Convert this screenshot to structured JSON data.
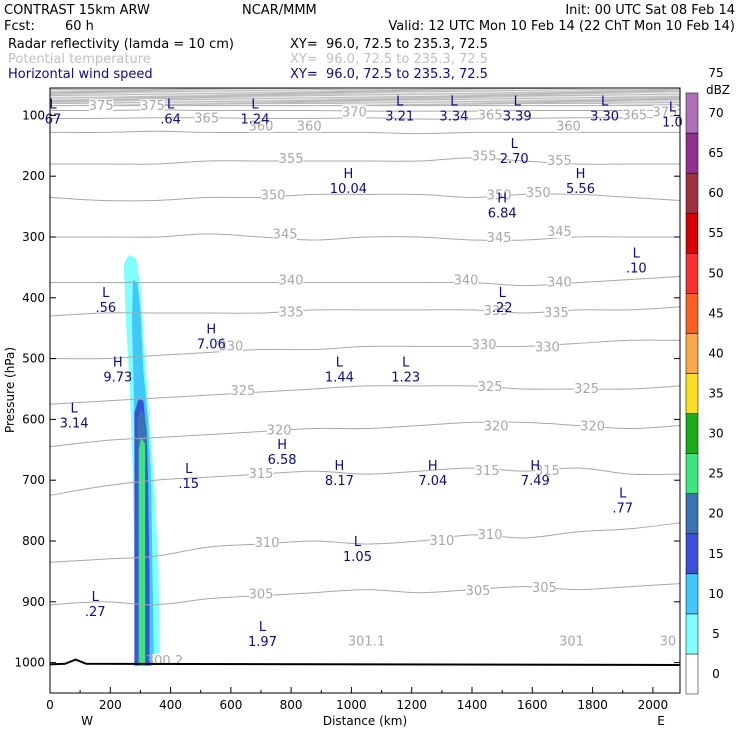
{
  "header": {
    "model": "CONTRAST 15km ARW",
    "center": "NCAR/MMM",
    "init": "Init: 00 UTC Sat 08 Feb 14",
    "fcst_label": "Fcst:",
    "fcst_value": "60 h",
    "valid": "Valid: 12 UTC Mon 10 Feb 14 (22 ChT Mon 10 Feb 14)",
    "fields": [
      {
        "name": "Radar reflectivity (lamda = 10 cm)",
        "xy": "XY=  96.0, 72.5 to 235.3, 72.5",
        "color": "#000000"
      },
      {
        "name": "Potential temperature",
        "xy": "XY=  96.0, 72.5 to 235.3, 72.5",
        "color": "#c0c0c0"
      },
      {
        "name": "Horizontal wind speed",
        "xy": "XY=  96.0, 72.5 to 235.3, 72.5",
        "color": "#0b0b8c"
      }
    ]
  },
  "chart_data": {
    "type": "cross-section",
    "xlabel": "Distance (km)",
    "ylabel": "Pressure (hPa)",
    "xlim": [
      0,
      2090
    ],
    "ylim": [
      1050,
      55
    ],
    "x_ticks": [
      0,
      200,
      400,
      600,
      800,
      1000,
      1200,
      1400,
      1600,
      1800,
      2000
    ],
    "y_ticks": [
      100,
      200,
      300,
      400,
      500,
      600,
      700,
      800,
      900,
      1000
    ],
    "x_end_labels": {
      "left": "W",
      "right": "E"
    },
    "colorbar": {
      "unit": "dBZ",
      "levels": [
        0,
        5,
        10,
        15,
        20,
        25,
        30,
        35,
        40,
        45,
        50,
        55,
        60,
        65,
        70,
        75
      ],
      "colors": [
        "#ffffff",
        "#7fffff",
        "#3fc8f8",
        "#3d50d8",
        "#3a74b0",
        "#3ce67a",
        "#1aad1a",
        "#f8e020",
        "#f8a848",
        "#f86020",
        "#f83030",
        "#d80000",
        "#a03040",
        "#903090",
        "#b070b8"
      ]
    },
    "theta_isentropes": [
      {
        "value": 305,
        "p": [
          905,
          900,
          905,
          895,
          890,
          885,
          880,
          885,
          880,
          875,
          880,
          875,
          870
        ]
      },
      {
        "value": 310,
        "p": [
          835,
          830,
          825,
          810,
          805,
          800,
          805,
          800,
          790,
          795,
          785,
          780,
          770
        ]
      },
      {
        "value": 315,
        "p": [
          725,
          710,
          700,
          695,
          690,
          685,
          690,
          685,
          680,
          685,
          680,
          690,
          690
        ]
      },
      {
        "value": 320,
        "p": [
          645,
          635,
          630,
          625,
          620,
          615,
          615,
          610,
          605,
          605,
          610,
          615,
          610
        ]
      },
      {
        "value": 325,
        "p": [
          575,
          570,
          565,
          560,
          555,
          550,
          545,
          545,
          545,
          550,
          550,
          550,
          545
        ]
      },
      {
        "value": 330,
        "p": [
          500,
          500,
          495,
          490,
          485,
          485,
          480,
          480,
          480,
          480,
          475,
          470,
          470
        ]
      },
      {
        "value": 335,
        "p": [
          430,
          425,
          425,
          425,
          425,
          420,
          420,
          420,
          420,
          425,
          420,
          420,
          415
        ]
      },
      {
        "value": 340,
        "p": [
          375,
          375,
          375,
          375,
          375,
          375,
          375,
          375,
          375,
          380,
          375,
          370,
          365
        ]
      },
      {
        "value": 345,
        "p": [
          300,
          300,
          300,
          295,
          300,
          305,
          300,
          300,
          305,
          305,
          300,
          300,
          300
        ]
      },
      {
        "value": 350,
        "p": [
          235,
          240,
          240,
          235,
          235,
          230,
          230,
          230,
          235,
          230,
          230,
          235,
          240
        ]
      },
      {
        "value": 355,
        "p": [
          180,
          180,
          180,
          175,
          175,
          175,
          175,
          175,
          170,
          175,
          180,
          180,
          180
        ]
      },
      {
        "value": 360,
        "p": [
          128,
          128,
          126,
          128,
          128,
          128,
          128,
          130,
          128,
          128,
          128,
          128,
          128
        ]
      },
      {
        "value": 365,
        "p": [
          105,
          105,
          104,
          104,
          105,
          105,
          104,
          106,
          106,
          105,
          104,
          104,
          104
        ]
      },
      {
        "value": 370,
        "p": [
          92,
          92,
          91,
          92,
          92,
          92,
          93,
          93,
          93,
          92,
          92,
          92,
          91
        ]
      },
      {
        "value": 375,
        "p": [
          84,
          84,
          84,
          84,
          84,
          84,
          84,
          84,
          84,
          84,
          84,
          84,
          84
        ]
      }
    ],
    "isentrope_x": [
      0,
      175,
      350,
      525,
      700,
      875,
      1050,
      1225,
      1400,
      1575,
      1750,
      1925,
      2090
    ],
    "theta_labels": [
      {
        "text": "375",
        "x": 170,
        "p": 85
      },
      {
        "text": "375",
        "x": 340,
        "p": 85
      },
      {
        "text": "365",
        "x": 520,
        "p": 105
      },
      {
        "text": "370",
        "x": 1010,
        "p": 95
      },
      {
        "text": "365",
        "x": 1460,
        "p": 100
      },
      {
        "text": "365",
        "x": 1940,
        "p": 100
      },
      {
        "text": "375",
        "x": 2040,
        "p": 95
      },
      {
        "text": "360",
        "x": 700,
        "p": 118
      },
      {
        "text": "360",
        "x": 860,
        "p": 118
      },
      {
        "text": "360",
        "x": 1720,
        "p": 118
      },
      {
        "text": "355",
        "x": 800,
        "p": 172
      },
      {
        "text": "355",
        "x": 1440,
        "p": 168
      },
      {
        "text": "355",
        "x": 1690,
        "p": 175
      },
      {
        "text": "350",
        "x": 740,
        "p": 232
      },
      {
        "text": "350",
        "x": 1490,
        "p": 232
      },
      {
        "text": "350",
        "x": 1620,
        "p": 228
      },
      {
        "text": "345",
        "x": 780,
        "p": 296
      },
      {
        "text": "345",
        "x": 1490,
        "p": 302
      },
      {
        "text": "345",
        "x": 1690,
        "p": 292
      },
      {
        "text": "340",
        "x": 800,
        "p": 372
      },
      {
        "text": "340",
        "x": 1380,
        "p": 372
      },
      {
        "text": "340",
        "x": 1690,
        "p": 375
      },
      {
        "text": "335",
        "x": 800,
        "p": 424
      },
      {
        "text": "335",
        "x": 1480,
        "p": 422
      },
      {
        "text": "335",
        "x": 1680,
        "p": 425
      },
      {
        "text": "330",
        "x": 600,
        "p": 480
      },
      {
        "text": "330",
        "x": 1440,
        "p": 478
      },
      {
        "text": "330",
        "x": 1650,
        "p": 482
      },
      {
        "text": "325",
        "x": 640,
        "p": 553
      },
      {
        "text": "325",
        "x": 1460,
        "p": 547
      },
      {
        "text": "325",
        "x": 1780,
        "p": 550
      },
      {
        "text": "320",
        "x": 760,
        "p": 618
      },
      {
        "text": "320",
        "x": 1480,
        "p": 612
      },
      {
        "text": "320",
        "x": 1800,
        "p": 612
      },
      {
        "text": "315",
        "x": 700,
        "p": 690
      },
      {
        "text": "315",
        "x": 1450,
        "p": 685
      },
      {
        "text": "315",
        "x": 1650,
        "p": 685
      },
      {
        "text": "310",
        "x": 720,
        "p": 803
      },
      {
        "text": "310",
        "x": 1300,
        "p": 800
      },
      {
        "text": "310",
        "x": 1460,
        "p": 790
      },
      {
        "text": "305",
        "x": 700,
        "p": 888
      },
      {
        "text": "305",
        "x": 1420,
        "p": 882
      },
      {
        "text": "305",
        "x": 1640,
        "p": 877
      },
      {
        "text": "301.1",
        "x": 1050,
        "p": 965
      },
      {
        "text": "301",
        "x": 1730,
        "p": 965
      },
      {
        "text": "30",
        "x": 2050,
        "p": 965
      },
      {
        "text": "300.2",
        "x": 380,
        "p": 997
      }
    ],
    "extrema": [
      {
        "type": "L",
        "value": "67",
        "x": 10,
        "p": 95
      },
      {
        "type": "L",
        "value": ".64",
        "x": 400,
        "p": 95
      },
      {
        "type": "L",
        "value": "1.24",
        "x": 680,
        "p": 95
      },
      {
        "type": "L",
        "value": "3.21",
        "x": 1160,
        "p": 90
      },
      {
        "type": "L",
        "value": "3.34",
        "x": 1340,
        "p": 90
      },
      {
        "type": "L",
        "value": "3.39",
        "x": 1550,
        "p": 90
      },
      {
        "type": "L",
        "value": "3.30",
        "x": 1840,
        "p": 90
      },
      {
        "type": "L",
        "value": "1.0",
        "x": 2065,
        "p": 100
      },
      {
        "type": "L",
        "value": "2.70",
        "x": 1540,
        "p": 160
      },
      {
        "type": "H",
        "value": "10.04",
        "x": 990,
        "p": 210
      },
      {
        "type": "H",
        "value": "5.56",
        "x": 1760,
        "p": 210
      },
      {
        "type": "H",
        "value": "6.84",
        "x": 1500,
        "p": 250
      },
      {
        "type": "L",
        "value": ".10",
        "x": 1945,
        "p": 340
      },
      {
        "type": "L",
        "value": ".56",
        "x": 185,
        "p": 405
      },
      {
        "type": "L",
        "value": ".22",
        "x": 1500,
        "p": 405
      },
      {
        "type": "H",
        "value": "7.06",
        "x": 535,
        "p": 465
      },
      {
        "type": "H",
        "value": "9.73",
        "x": 225,
        "p": 520
      },
      {
        "type": "L",
        "value": "1.44",
        "x": 960,
        "p": 520
      },
      {
        "type": "L",
        "value": "1.23",
        "x": 1180,
        "p": 520
      },
      {
        "type": "L",
        "value": "3.14",
        "x": 80,
        "p": 595
      },
      {
        "type": "H",
        "value": "6.58",
        "x": 770,
        "p": 655
      },
      {
        "type": "L",
        "value": ".15",
        "x": 460,
        "p": 695
      },
      {
        "type": "H",
        "value": "8.17",
        "x": 960,
        "p": 690
      },
      {
        "type": "H",
        "value": "7.04",
        "x": 1270,
        "p": 690
      },
      {
        "type": "H",
        "value": "7.49",
        "x": 1610,
        "p": 690
      },
      {
        "type": "L",
        "value": ".77",
        "x": 1900,
        "p": 735
      },
      {
        "type": "L",
        "value": "1.05",
        "x": 1020,
        "p": 815
      },
      {
        "type": "L",
        "value": ".27",
        "x": 150,
        "p": 905
      },
      {
        "type": "L",
        "value": "1.97",
        "x": 705,
        "p": 955
      }
    ],
    "reflectivity_polygons": [
      {
        "level": 5,
        "color": "#7fffff",
        "points": [
          [
            245,
            345
          ],
          [
            260,
            330
          ],
          [
            285,
            335
          ],
          [
            300,
            380
          ],
          [
            315,
            500
          ],
          [
            330,
            600
          ],
          [
            345,
            700
          ],
          [
            360,
            850
          ],
          [
            365,
            1005
          ],
          [
            280,
            1005
          ],
          [
            280,
            850
          ],
          [
            275,
            700
          ],
          [
            265,
            550
          ],
          [
            250,
            420
          ]
        ]
      },
      {
        "level": 10,
        "color": "#3fc8f8",
        "points": [
          [
            275,
            370
          ],
          [
            290,
            375
          ],
          [
            300,
            420
          ],
          [
            310,
            520
          ],
          [
            325,
            600
          ],
          [
            335,
            700
          ],
          [
            340,
            850
          ],
          [
            345,
            1005
          ],
          [
            285,
            1005
          ],
          [
            285,
            850
          ],
          [
            282,
            700
          ],
          [
            278,
            550
          ],
          [
            272,
            440
          ]
        ]
      },
      {
        "level": 15,
        "color": "#3d50d8",
        "points": [
          [
            280,
            590
          ],
          [
            295,
            565
          ],
          [
            310,
            570
          ],
          [
            320,
            620
          ],
          [
            325,
            700
          ],
          [
            330,
            850
          ],
          [
            330,
            1005
          ],
          [
            280,
            1005
          ],
          [
            280,
            850
          ],
          [
            280,
            700
          ]
        ]
      },
      {
        "level": 20,
        "color": "#3a74b0",
        "points": [
          [
            290,
            600
          ],
          [
            300,
            585
          ],
          [
            315,
            595
          ],
          [
            318,
            650
          ],
          [
            318,
            1005
          ],
          [
            290,
            1005
          ],
          [
            290,
            700
          ]
        ]
      },
      {
        "level": 25,
        "color": "#3ce67a",
        "points": [
          [
            295,
            650
          ],
          [
            302,
            630
          ],
          [
            315,
            640
          ],
          [
            315,
            1005
          ],
          [
            295,
            1005
          ]
        ]
      }
    ],
    "terrain": {
      "x": [
        0,
        50,
        85,
        120,
        2090
      ],
      "p": [
        1003,
        1002,
        995,
        1002,
        1004
      ]
    }
  }
}
